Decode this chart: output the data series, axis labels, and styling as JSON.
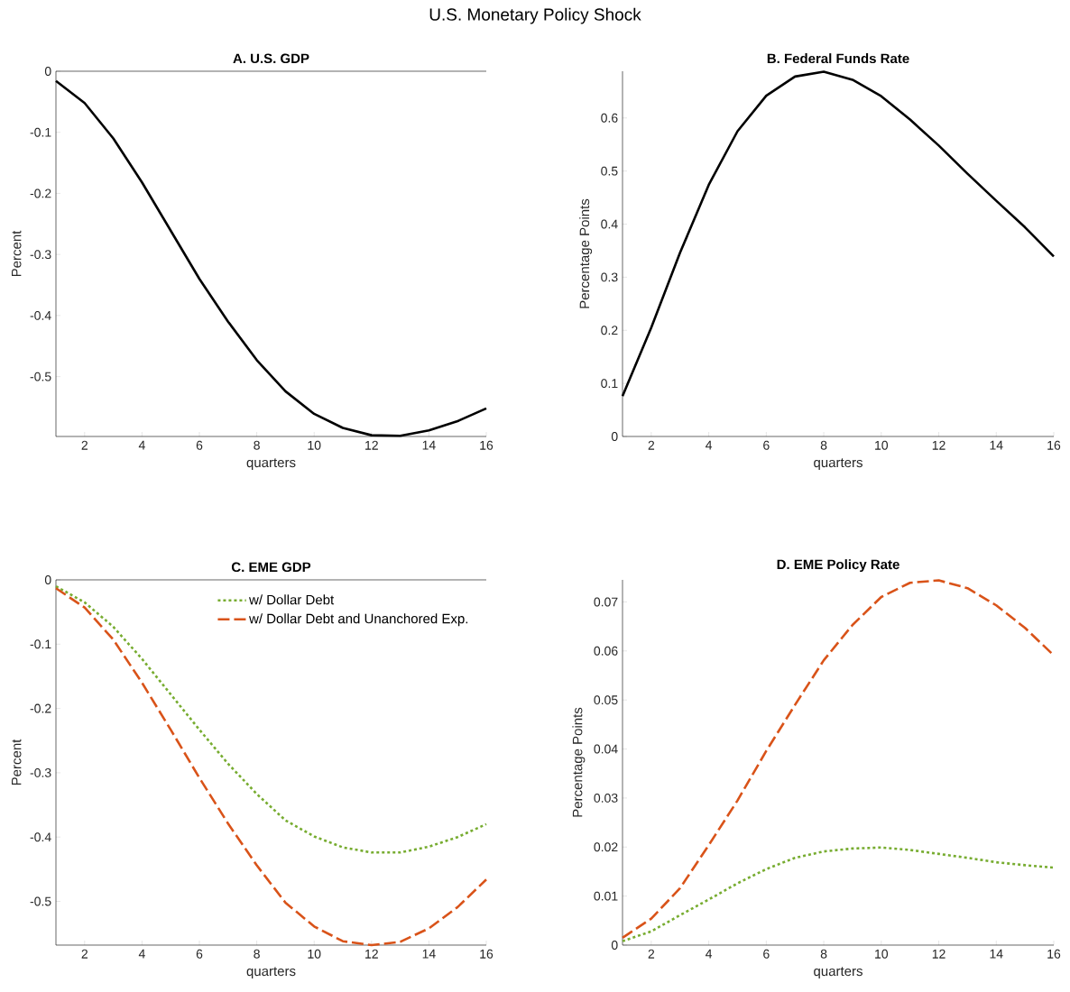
{
  "chart_data": [
    {
      "type": "line",
      "title": "A. U.S. GDP",
      "xlabel": "quarters",
      "ylabel": "Percent",
      "annotations": [
        "U.S. Monetary Policy Shock"
      ],
      "x": [
        1,
        2,
        3,
        4,
        5,
        6,
        7,
        8,
        9,
        10,
        11,
        12,
        13,
        14,
        15,
        16
      ],
      "xlim": [
        1,
        16
      ],
      "xticks": [
        2,
        4,
        6,
        8,
        10,
        12,
        14,
        16
      ],
      "ylim": [
        -0.598,
        0
      ],
      "yticks": [
        -0.5,
        -0.4,
        -0.3,
        -0.2,
        -0.1,
        0
      ],
      "ref_lines": [
        {
          "axis": "y",
          "value": 0,
          "color": "#000000"
        }
      ],
      "series": [
        {
          "color": "#000000",
          "line_style": "solid",
          "values": [
            -0.016,
            -0.052,
            -0.11,
            -0.182,
            -0.261,
            -0.34,
            -0.41,
            -0.473,
            -0.524,
            -0.561,
            -0.584,
            -0.596,
            -0.597,
            -0.588,
            -0.573,
            -0.552
          ]
        }
      ]
    },
    {
      "type": "line",
      "title": "B. Federal Funds Rate",
      "xlabel": "quarters",
      "ylabel": "Percentage Points",
      "x": [
        1,
        2,
        3,
        4,
        5,
        6,
        7,
        8,
        9,
        10,
        11,
        12,
        13,
        14,
        15,
        16
      ],
      "xlim": [
        1,
        16
      ],
      "xticks": [
        2,
        4,
        6,
        8,
        10,
        12,
        14,
        16
      ],
      "ylim": [
        0,
        0.688
      ],
      "yticks": [
        0,
        0.1,
        0.2,
        0.3,
        0.4,
        0.5,
        0.6
      ],
      "series": [
        {
          "color": "#000000",
          "line_style": "solid",
          "values": [
            0.076,
            0.205,
            0.346,
            0.474,
            0.575,
            0.642,
            0.678,
            0.687,
            0.672,
            0.641,
            0.597,
            0.548,
            0.495,
            0.444,
            0.394,
            0.339
          ]
        }
      ]
    },
    {
      "type": "line",
      "title": "C. EME GDP",
      "xlabel": "quarters",
      "ylabel": "Percent",
      "legend": "top right",
      "x": [
        1,
        2,
        3,
        4,
        5,
        6,
        7,
        8,
        9,
        10,
        11,
        12,
        13,
        14,
        15,
        16
      ],
      "xlim": [
        1,
        16
      ],
      "xticks": [
        2,
        4,
        6,
        8,
        10,
        12,
        14,
        16
      ],
      "ylim": [
        -0.568,
        0
      ],
      "yticks": [
        -0.5,
        -0.4,
        -0.3,
        -0.2,
        -0.1,
        0
      ],
      "ref_lines": [
        {
          "axis": "y",
          "value": 0,
          "color": "#000000"
        }
      ],
      "series": [
        {
          "name": "w/ Dollar Debt",
          "color": "#77ac30",
          "line_style": "dotted",
          "values": [
            -0.01,
            -0.035,
            -0.073,
            -0.123,
            -0.178,
            -0.233,
            -0.286,
            -0.333,
            -0.374,
            -0.399,
            -0.416,
            -0.424,
            -0.424,
            -0.415,
            -0.4,
            -0.38
          ]
        },
        {
          "name": "w/ Dollar Debt and Unanchored Exp.",
          "color": "#d95319",
          "line_style": "dashed",
          "values": [
            -0.013,
            -0.043,
            -0.093,
            -0.16,
            -0.233,
            -0.308,
            -0.379,
            -0.444,
            -0.502,
            -0.539,
            -0.562,
            -0.568,
            -0.563,
            -0.542,
            -0.509,
            -0.466
          ]
        }
      ]
    },
    {
      "type": "line",
      "title": "D. EME Policy Rate",
      "xlabel": "quarters",
      "ylabel": "Percentage Points",
      "x": [
        1,
        2,
        3,
        4,
        5,
        6,
        7,
        8,
        9,
        10,
        11,
        12,
        13,
        14,
        15,
        16
      ],
      "xlim": [
        1,
        16
      ],
      "xticks": [
        2,
        4,
        6,
        8,
        10,
        12,
        14,
        16
      ],
      "ylim": [
        0,
        0.0745
      ],
      "yticks": [
        0,
        0.01,
        0.02,
        0.03,
        0.04,
        0.05,
        0.06,
        0.07
      ],
      "series": [
        {
          "color": "#77ac30",
          "line_style": "dotted",
          "values": [
            0.0008,
            0.0028,
            0.0061,
            0.0093,
            0.0126,
            0.0155,
            0.0178,
            0.0191,
            0.0197,
            0.0199,
            0.0194,
            0.0186,
            0.0178,
            0.0169,
            0.0163,
            0.0158
          ]
        },
        {
          "color": "#d95319",
          "line_style": "dashed",
          "values": [
            0.0015,
            0.0054,
            0.0116,
            0.0204,
            0.0295,
            0.0396,
            0.049,
            0.0581,
            0.0653,
            0.071,
            0.0739,
            0.0744,
            0.0728,
            0.0693,
            0.0647,
            0.0591
          ]
        }
      ]
    }
  ]
}
